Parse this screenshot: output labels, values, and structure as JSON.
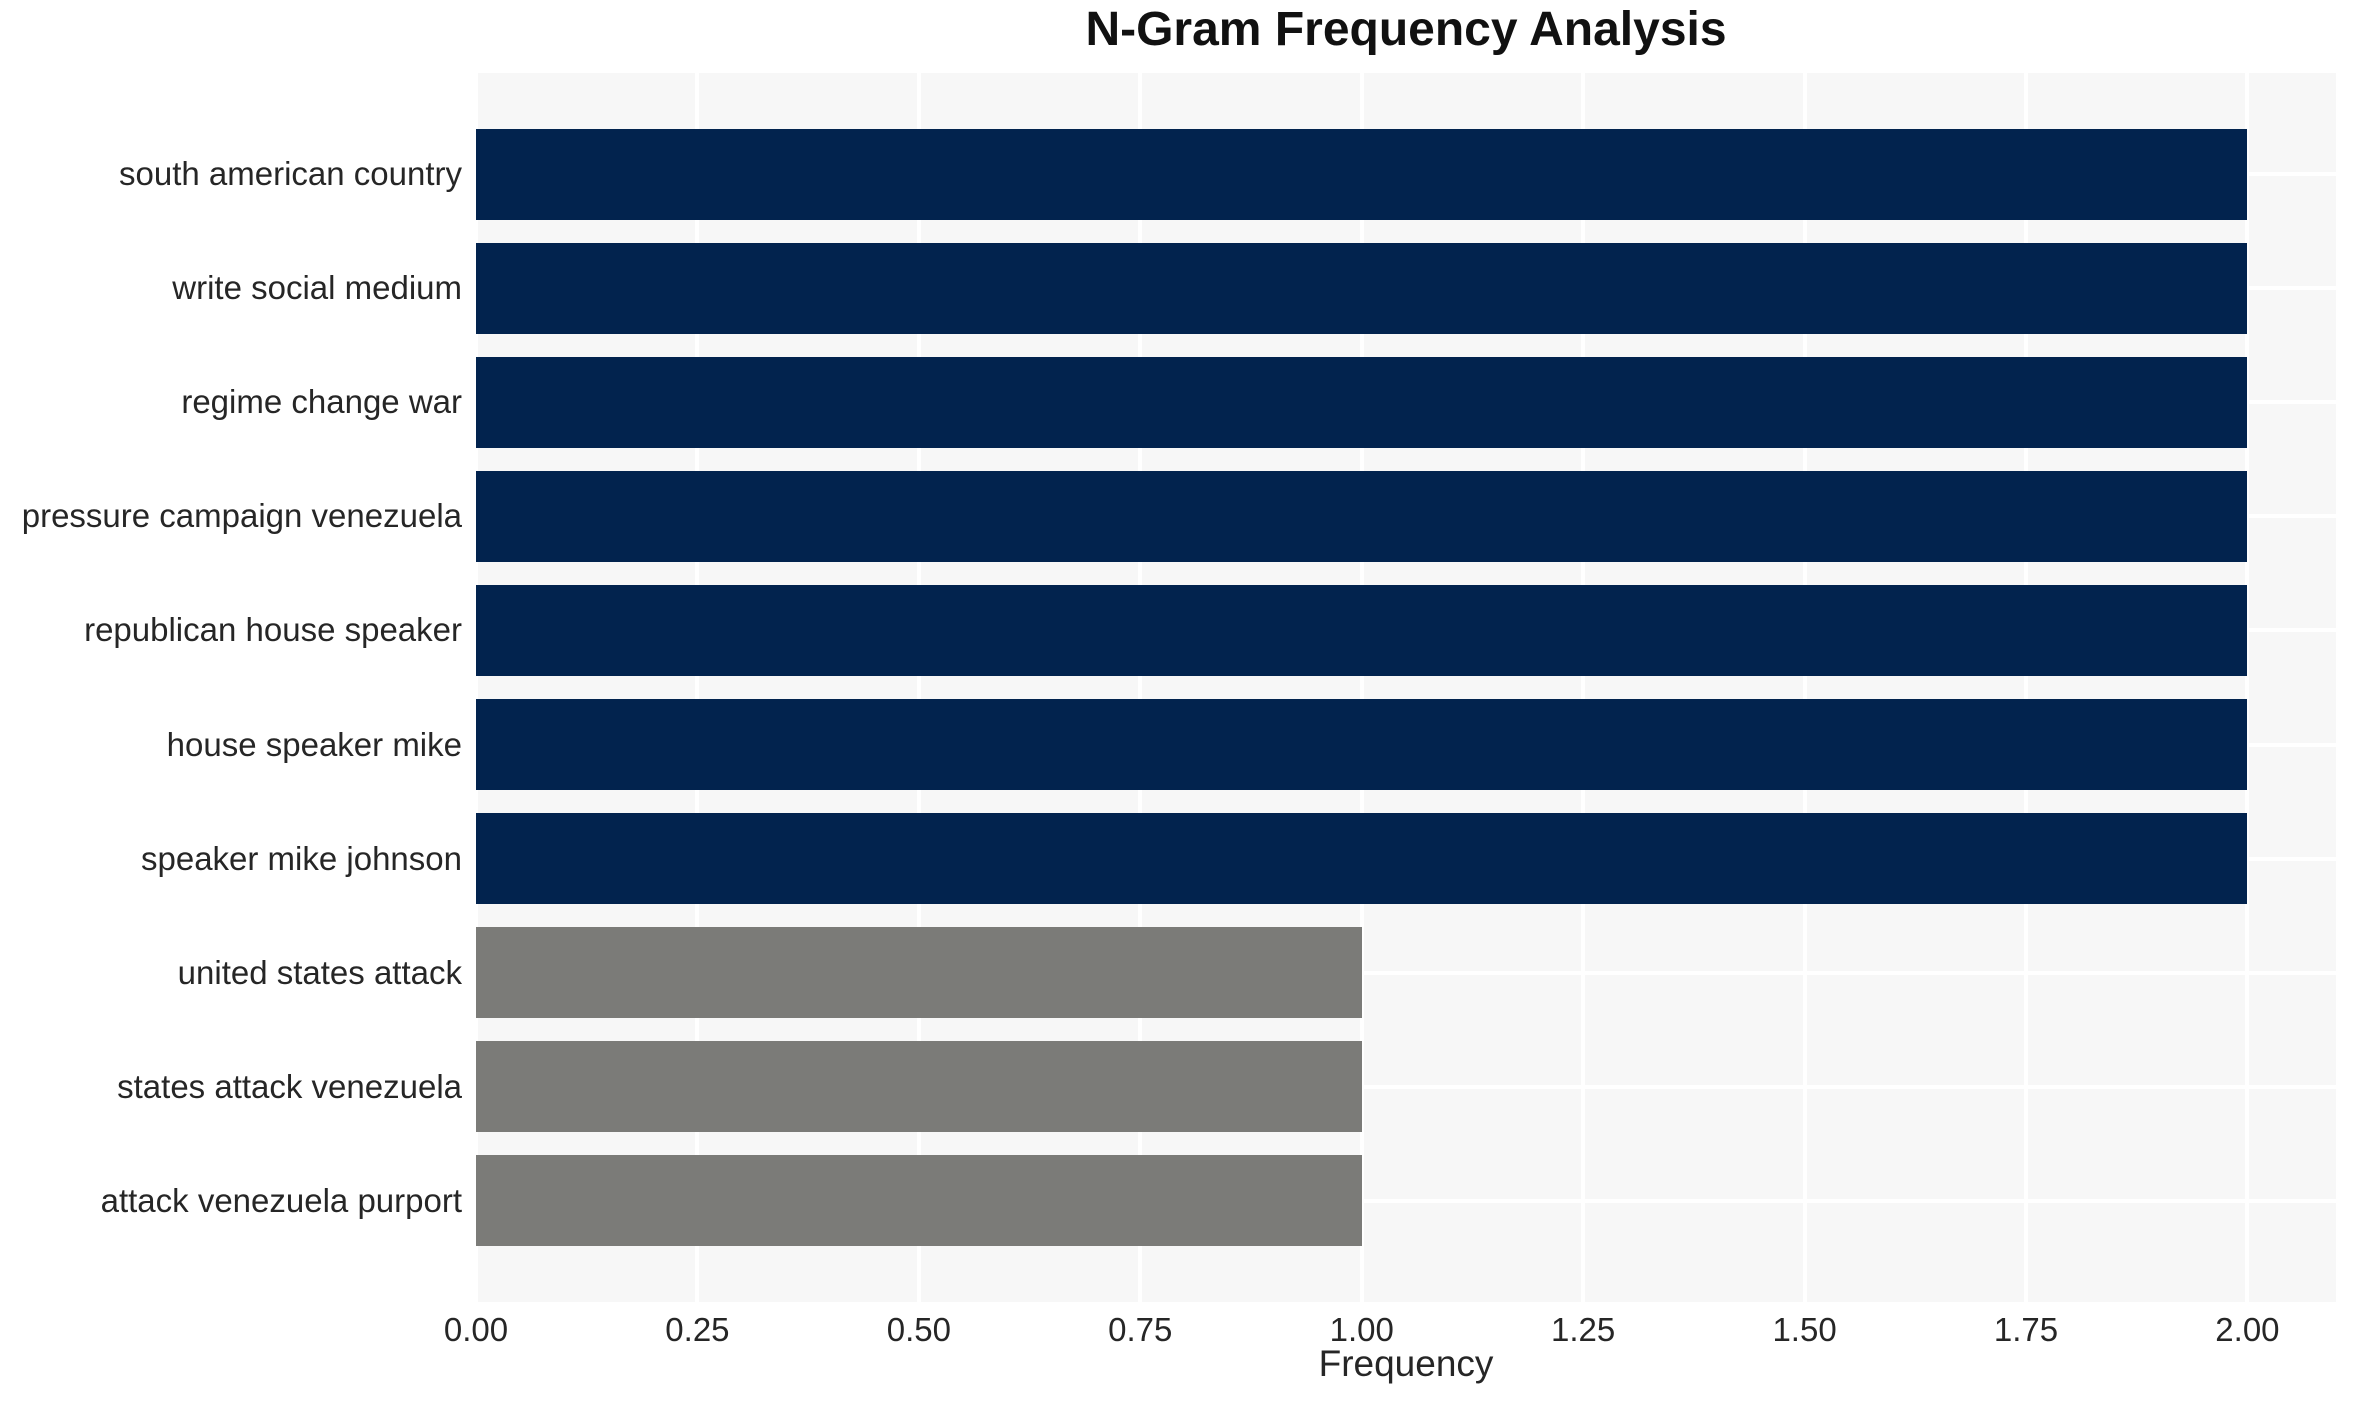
{
  "chart_data": {
    "type": "bar",
    "orientation": "horizontal",
    "title": "N-Gram Frequency Analysis",
    "xlabel": "Frequency",
    "ylabel": "",
    "categories": [
      "south american country",
      "write social medium",
      "regime change war",
      "pressure campaign venezuela",
      "republican house speaker",
      "house speaker mike",
      "speaker mike johnson",
      "united states attack",
      "states attack venezuela",
      "attack venezuela purport"
    ],
    "values": [
      2,
      2,
      2,
      2,
      2,
      2,
      2,
      1,
      1,
      1
    ],
    "bar_colors": [
      "#02234e",
      "#02234e",
      "#02234e",
      "#02234e",
      "#02234e",
      "#02234e",
      "#02234e",
      "#7b7b78",
      "#7b7b78",
      "#7b7b78"
    ],
    "x_ticks": [
      {
        "value": 0.0,
        "label": "0.00"
      },
      {
        "value": 0.25,
        "label": "0.25"
      },
      {
        "value": 0.5,
        "label": "0.50"
      },
      {
        "value": 0.75,
        "label": "0.75"
      },
      {
        "value": 1.0,
        "label": "1.00"
      },
      {
        "value": 1.25,
        "label": "1.25"
      },
      {
        "value": 1.5,
        "label": "1.50"
      },
      {
        "value": 1.75,
        "label": "1.75"
      },
      {
        "value": 2.0,
        "label": "2.00"
      }
    ],
    "xlim": [
      0,
      2.1
    ],
    "ylim": [
      -0.89,
      9.89
    ],
    "bar_thickness_ratio": 0.8,
    "grid": "on",
    "grid_color": "#ffffff",
    "plot_background": "#f7f7f7",
    "figure_background": "#ffffff",
    "text_color": "#262626",
    "legend": "none"
  }
}
